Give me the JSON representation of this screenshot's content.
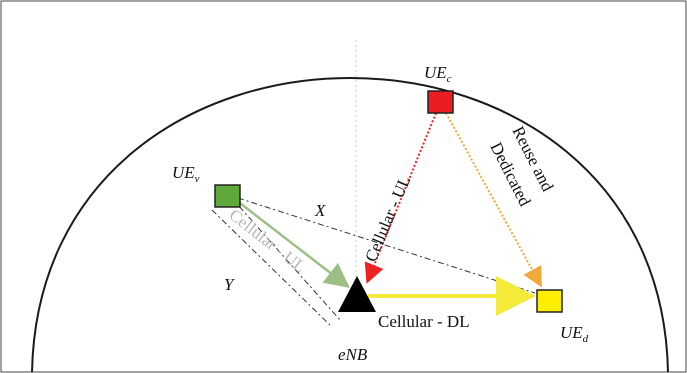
{
  "nodes": {
    "enb": {
      "label": "eNB",
      "color": "#000000"
    },
    "ue_c": {
      "base": "UE",
      "sub": "c",
      "color": "#ec1c24"
    },
    "ue_v": {
      "base": "UE",
      "sub": "v",
      "color": "#5fa83a"
    },
    "ue_d": {
      "base": "UE",
      "sub": "d",
      "color": "#ffee00"
    }
  },
  "links": {
    "cellular_ul_c": {
      "label": "Cellular - UL",
      "color": "#ee2222"
    },
    "cellular_ul_v": {
      "label": "Cellular - UL",
      "color": "#9dbf86"
    },
    "cellular_dl": {
      "label": "Cellular - DL",
      "color": "#f5ea3c"
    },
    "reuse": {
      "label_line1": "Reuse and",
      "label_line2": "Dedicated",
      "color": "#f0a838"
    },
    "x": {
      "label": "X"
    },
    "y": {
      "label": "Y"
    }
  }
}
